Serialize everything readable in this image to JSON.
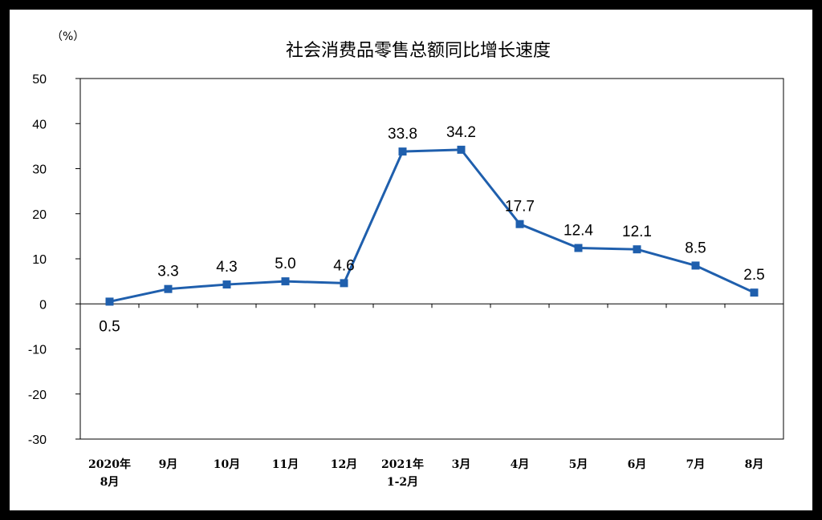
{
  "chart_data": {
    "type": "line",
    "title": "社会消费品零售总额同比增长速度",
    "unit_label": "（%）",
    "categories": [
      [
        "2020年",
        "8月"
      ],
      [
        "9月"
      ],
      [
        "10月"
      ],
      [
        "11月"
      ],
      [
        "12月"
      ],
      [
        "2021年",
        "1-2月"
      ],
      [
        "3月"
      ],
      [
        "4月"
      ],
      [
        "5月"
      ],
      [
        "6月"
      ],
      [
        "7月"
      ],
      [
        "8月"
      ]
    ],
    "series": [
      {
        "values": [
          0.5,
          3.3,
          4.3,
          5.0,
          4.6,
          33.8,
          34.2,
          17.7,
          12.4,
          12.1,
          8.5,
          2.5
        ],
        "data_labels": [
          "0.5",
          "3.3",
          "4.3",
          "5.0",
          "4.6",
          "33.8",
          "34.2",
          "17.7",
          "12.4",
          "12.1",
          "8.5",
          "2.5"
        ],
        "color": "#1f5fad",
        "marker": "square"
      }
    ],
    "ylim": [
      -30,
      50
    ],
    "yticks": [
      50,
      40,
      30,
      20,
      10,
      0,
      -10,
      -20,
      -30
    ],
    "ytick_labels": [
      "50",
      "40",
      "30",
      "20",
      "10",
      "0",
      "-10",
      "-20",
      "-30"
    ],
    "grid": false,
    "legend": "none"
  }
}
